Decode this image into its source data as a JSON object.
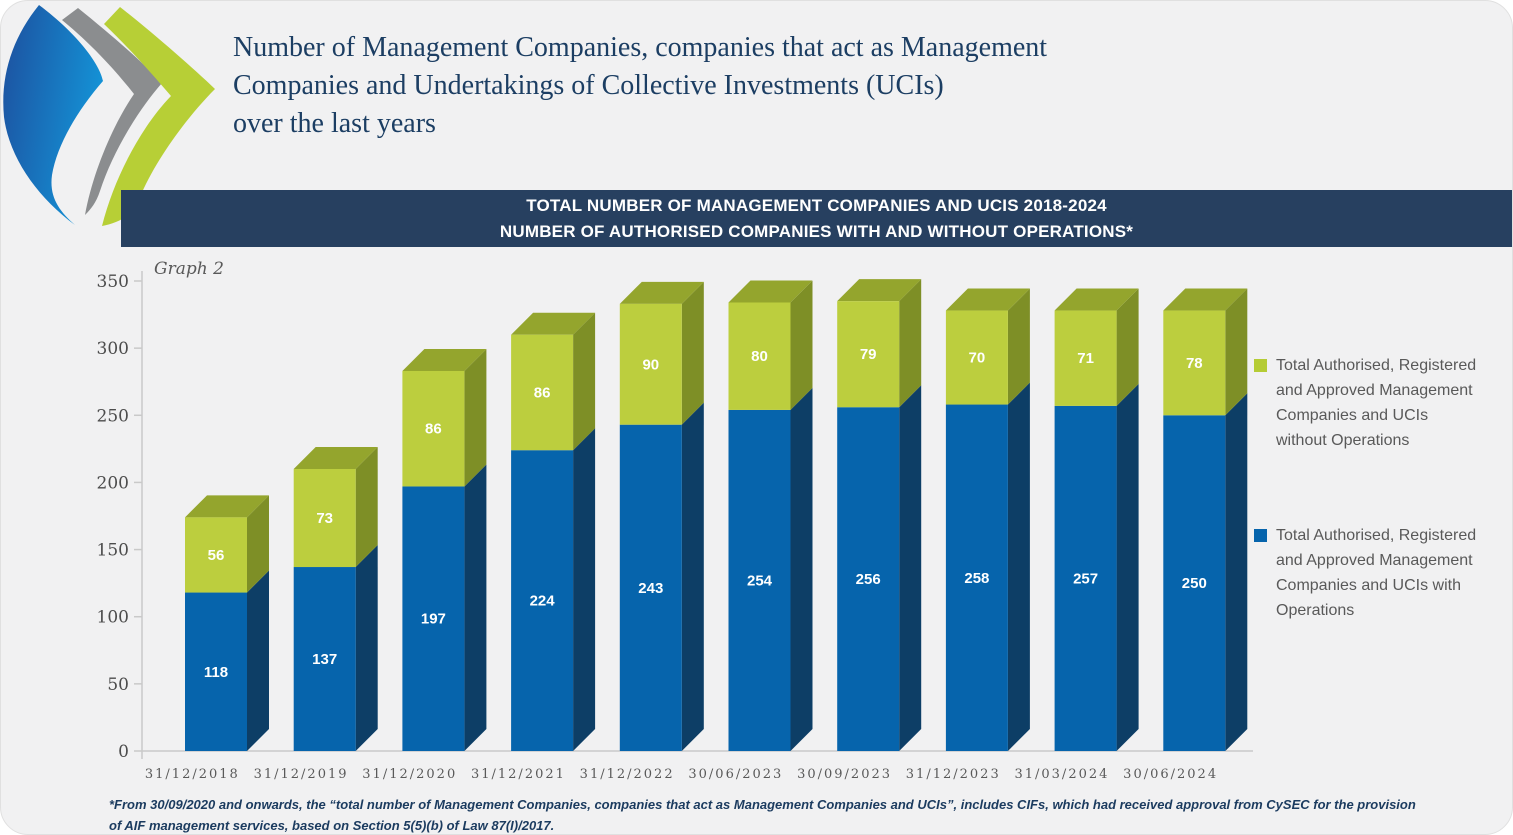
{
  "page": {
    "background": "#f1f1f2",
    "accent_navy": "#274060"
  },
  "logo": {
    "name": "three-chevron-logo",
    "colors": {
      "blue_start": "#1d4f9e",
      "blue_end": "#1492d6",
      "gray": "#8b8d8f",
      "green": "#b7cf36"
    }
  },
  "header": {
    "title_lines": [
      "Number of Management Companies, companies that act as Management",
      "Companies and Undertakings of Collective Investments (UCIs)",
      "over the last years"
    ]
  },
  "banner": {
    "line1": "TOTAL NUMBER OF MANAGEMENT COMPANIES AND UCIS 2018-2024",
    "line2": "NUMBER OF AUTHORISED COMPANIES WITH AND WITHOUT OPERATIONS*",
    "background": "#274060"
  },
  "chart_data": {
    "type": "bar",
    "subtype": "stacked-3d",
    "graph_label": "Graph 2",
    "categories": [
      "31/12/2018",
      "31/12/2019",
      "31/12/2020",
      "31/12/2021",
      "31/12/2022",
      "30/06/2023",
      "30/09/2023",
      "31/12/2023",
      "31/03/2024",
      "30/06/2024"
    ],
    "series": [
      {
        "name": "Total Authorised, Registered and Approved Management Companies and UCIs with Operations",
        "color": "#0664ac",
        "side_color": "#0d3e66",
        "values": [
          118,
          137,
          197,
          224,
          243,
          254,
          256,
          258,
          257,
          250
        ]
      },
      {
        "name": "Total Authorised, Registered and Approved Management Companies and UCIs without Operations",
        "color": "#bcce3e",
        "side_color": "#7e8f26",
        "top_color": "#94a52d",
        "values": [
          56,
          73,
          86,
          86,
          90,
          80,
          79,
          70,
          71,
          78
        ]
      }
    ],
    "ylim": [
      0,
      350
    ],
    "yticks": [
      0,
      50,
      100,
      150,
      200,
      250,
      300,
      350
    ],
    "grid": false,
    "legend_position": "right",
    "value_label_color": "#ffffff",
    "axis_color": "#c9c9c9",
    "tick_label_color": "#4c4c4c",
    "category_label_color": "#595959"
  },
  "legend": {
    "items": [
      {
        "color": "#b5cc35",
        "lines": [
          "Total Authorised, Registered",
          "and Approved Management",
          "Companies and UCIs",
          "without Operations"
        ]
      },
      {
        "color": "#0664ac",
        "lines": [
          "Total Authorised, Registered",
          "and Approved Management",
          "Companies and UCIs with",
          "Operations"
        ]
      }
    ]
  },
  "footnote": {
    "line1": "*From 30/09/2020 and onwards, the “total number of Management Companies, companies that act as Management Companies and UCIs”, includes CIFs, which had received approval from CySEC for the provision",
    "line2": "of AIF management services, based on Section 5(5)(b) of Law 87(I)/2017."
  }
}
